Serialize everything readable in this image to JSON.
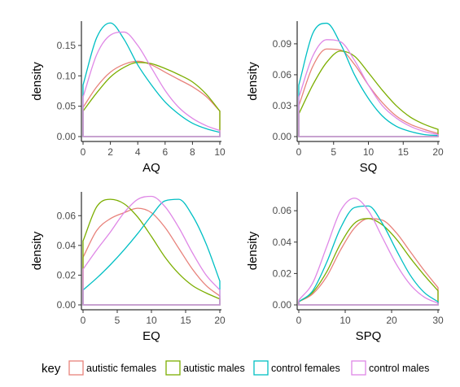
{
  "colors": {
    "autistic females": "#e8827b",
    "autistic males": "#7cae00",
    "control females": "#00bfc4",
    "control males": "#df87e6"
  },
  "legend": {
    "title": "key",
    "placement": "bottom",
    "entries": [
      "autistic females",
      "autistic males",
      "control females",
      "control males"
    ]
  },
  "chart_data": [
    {
      "type": "line",
      "xlabel": "AQ",
      "ylabel": "density",
      "xlim": [
        0,
        10
      ],
      "ylim": [
        0,
        0.19
      ],
      "xticks": [
        0,
        2,
        4,
        6,
        8,
        10
      ],
      "yticks": [
        0.0,
        0.05,
        0.1,
        0.15
      ],
      "ytick_labels": [
        "0.00",
        "0.05",
        "0.10",
        "0.15"
      ],
      "x": [
        0,
        1,
        2,
        3,
        4,
        5,
        6,
        7,
        8,
        9,
        10
      ],
      "series": [
        {
          "name": "autistic females",
          "values": [
            0.048,
            0.082,
            0.106,
            0.119,
            0.124,
            0.118,
            0.106,
            0.094,
            0.082,
            0.066,
            0.042
          ]
        },
        {
          "name": "autistic males",
          "values": [
            0.042,
            0.072,
            0.098,
            0.114,
            0.122,
            0.12,
            0.112,
            0.102,
            0.09,
            0.07,
            0.042
          ]
        },
        {
          "name": "control females",
          "values": [
            0.085,
            0.163,
            0.187,
            0.16,
            0.118,
            0.085,
            0.057,
            0.037,
            0.022,
            0.013,
            0.007
          ]
        },
        {
          "name": "control males",
          "values": [
            0.065,
            0.135,
            0.167,
            0.172,
            0.15,
            0.113,
            0.076,
            0.048,
            0.03,
            0.018,
            0.01
          ]
        }
      ]
    },
    {
      "type": "line",
      "xlabel": "SQ",
      "ylabel": "density",
      "xlim": [
        0,
        20
      ],
      "ylim": [
        0,
        0.112
      ],
      "xticks": [
        0,
        5,
        10,
        15,
        20
      ],
      "yticks": [
        0.0,
        0.03,
        0.06,
        0.09
      ],
      "ytick_labels": [
        "0.00",
        "0.03",
        "0.06",
        "0.09"
      ],
      "x": [
        0,
        2,
        4,
        6,
        8,
        10,
        12,
        14,
        16,
        18,
        20
      ],
      "series": [
        {
          "name": "autistic females",
          "values": [
            0.03,
            0.068,
            0.085,
            0.084,
            0.07,
            0.05,
            0.033,
            0.02,
            0.012,
            0.007,
            0.003
          ]
        },
        {
          "name": "autistic males",
          "values": [
            0.022,
            0.05,
            0.072,
            0.083,
            0.078,
            0.062,
            0.045,
            0.03,
            0.019,
            0.012,
            0.007
          ]
        },
        {
          "name": "control females",
          "values": [
            0.05,
            0.1,
            0.11,
            0.09,
            0.06,
            0.037,
            0.02,
            0.01,
            0.005,
            0.002,
            0.001
          ]
        },
        {
          "name": "control males",
          "values": [
            0.038,
            0.078,
            0.094,
            0.092,
            0.074,
            0.05,
            0.03,
            0.018,
            0.01,
            0.005,
            0.002
          ]
        }
      ]
    },
    {
      "type": "line",
      "xlabel": "EQ",
      "ylabel": "density",
      "xlim": [
        0,
        20
      ],
      "ylim": [
        0,
        0.076
      ],
      "xticks": [
        0,
        5,
        10,
        15,
        20
      ],
      "yticks": [
        0.0,
        0.02,
        0.04,
        0.06
      ],
      "ytick_labels": [
        "0.00",
        "0.02",
        "0.04",
        "0.06"
      ],
      "x": [
        0,
        2,
        4,
        6,
        8,
        10,
        12,
        14,
        16,
        18,
        20
      ],
      "series": [
        {
          "name": "autistic females",
          "values": [
            0.032,
            0.05,
            0.058,
            0.062,
            0.065,
            0.062,
            0.052,
            0.038,
            0.024,
            0.013,
            0.006
          ]
        },
        {
          "name": "autistic males",
          "values": [
            0.043,
            0.066,
            0.071,
            0.068,
            0.059,
            0.046,
            0.032,
            0.021,
            0.013,
            0.008,
            0.004
          ]
        },
        {
          "name": "control females",
          "values": [
            0.01,
            0.018,
            0.027,
            0.037,
            0.048,
            0.06,
            0.07,
            0.071,
            0.06,
            0.041,
            0.016
          ]
        },
        {
          "name": "control males",
          "values": [
            0.024,
            0.037,
            0.049,
            0.062,
            0.071,
            0.073,
            0.066,
            0.052,
            0.035,
            0.02,
            0.01
          ]
        }
      ]
    },
    {
      "type": "line",
      "xlabel": "SPQ",
      "ylabel": "density",
      "xlim": [
        0,
        30
      ],
      "ylim": [
        0,
        0.072
      ],
      "xticks": [
        0,
        10,
        20,
        30
      ],
      "yticks": [
        0.0,
        0.02,
        0.04,
        0.06
      ],
      "ytick_labels": [
        "0.00",
        "0.02",
        "0.04",
        "0.06"
      ],
      "x": [
        0,
        3,
        6,
        9,
        12,
        15,
        18,
        21,
        24,
        27,
        30
      ],
      "series": [
        {
          "name": "autistic females",
          "values": [
            0.002,
            0.007,
            0.018,
            0.035,
            0.049,
            0.055,
            0.054,
            0.046,
            0.034,
            0.022,
            0.011
          ]
        },
        {
          "name": "autistic males",
          "values": [
            0.002,
            0.008,
            0.021,
            0.039,
            0.052,
            0.055,
            0.051,
            0.042,
            0.03,
            0.019,
            0.009
          ]
        },
        {
          "name": "control females",
          "values": [
            0.002,
            0.009,
            0.027,
            0.049,
            0.062,
            0.063,
            0.052,
            0.035,
            0.019,
            0.008,
            0.002
          ]
        },
        {
          "name": "control males",
          "values": [
            0.003,
            0.014,
            0.037,
            0.06,
            0.068,
            0.06,
            0.043,
            0.026,
            0.013,
            0.005,
            0.001
          ]
        }
      ]
    }
  ]
}
